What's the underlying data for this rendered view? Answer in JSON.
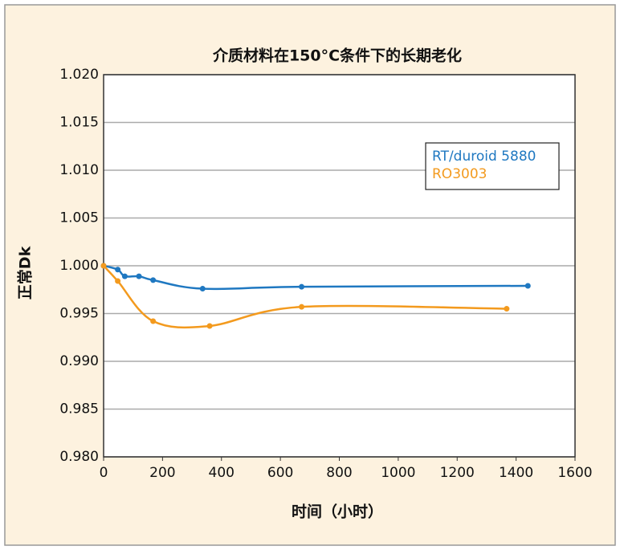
{
  "chart_data": {
    "type": "line",
    "title": "介质材料在150°C条件下的长期老化",
    "x_label": "时间（小时）",
    "y_label": "正常Dk",
    "xlim": [
      0,
      1600
    ],
    "xticks": [
      0,
      200,
      400,
      600,
      800,
      1000,
      1200,
      1400,
      1600
    ],
    "ylim": [
      0.98,
      1.02
    ],
    "yticks": [
      {
        "value": 0.98,
        "label": "0.980"
      },
      {
        "value": 0.985,
        "label": "0.985"
      },
      {
        "value": 0.99,
        "label": "0.990"
      },
      {
        "value": 0.995,
        "label": "0.995"
      },
      {
        "value": 1.0,
        "label": "1.000"
      },
      {
        "value": 1.005,
        "label": "1.005"
      },
      {
        "value": 1.01,
        "label": "1.010"
      },
      {
        "value": 1.015,
        "label": "1.015"
      },
      {
        "value": 1.02,
        "label": "1.020"
      }
    ],
    "grid": true,
    "legend": "upper right",
    "series": [
      {
        "name": "RT/duroid 5880",
        "color": "#1f78c1",
        "x": [
          0,
          48,
          72,
          120,
          168,
          336,
          672,
          1440
        ],
        "values": [
          1.0,
          0.9996,
          0.9989,
          0.9989,
          0.9985,
          0.9976,
          0.9978,
          0.9979
        ]
      },
      {
        "name": "RO3003",
        "color": "#f39a1e",
        "x": [
          0,
          48,
          168,
          360,
          672,
          1368
        ],
        "values": [
          1.0,
          0.9984,
          0.9942,
          0.9937,
          0.9957,
          0.9955
        ]
      }
    ]
  }
}
